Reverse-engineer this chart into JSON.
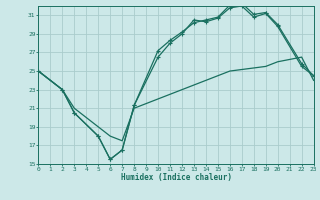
{
  "xlabel": "Humidex (Indice chaleur)",
  "bg_color": "#cce8e8",
  "grid_color": "#aacccc",
  "line_color": "#1a7060",
  "xlim": [
    0,
    23
  ],
  "ylim": [
    15,
    32
  ],
  "yticks": [
    15,
    17,
    19,
    21,
    23,
    25,
    27,
    29,
    31
  ],
  "xticks": [
    0,
    1,
    2,
    3,
    4,
    5,
    6,
    7,
    8,
    9,
    10,
    11,
    12,
    13,
    14,
    15,
    16,
    17,
    18,
    19,
    20,
    21,
    22,
    23
  ],
  "line1_x": [
    0,
    2,
    3,
    5,
    6,
    7,
    8,
    10,
    13,
    16,
    19,
    20,
    22,
    23
  ],
  "line1_y": [
    25,
    23,
    21,
    19,
    18,
    17.5,
    21,
    22,
    23.5,
    25,
    25.5,
    26,
    26.5,
    24
  ],
  "line2_x": [
    0,
    2,
    3,
    5,
    6,
    7,
    8,
    10,
    11,
    12,
    13,
    14,
    15,
    16,
    17,
    18,
    19,
    20,
    22,
    23
  ],
  "line2_y": [
    25,
    23,
    20.5,
    18,
    15.5,
    16.5,
    21.3,
    27.2,
    28.3,
    29.2,
    30.2,
    30.5,
    30.8,
    32.1,
    32.3,
    31.1,
    31.3,
    30.0,
    25.8,
    24.5
  ],
  "line3_x": [
    0,
    2,
    3,
    5,
    6,
    7,
    8,
    10,
    11,
    12,
    13,
    14,
    15,
    16,
    17,
    18,
    19,
    20,
    22,
    23
  ],
  "line3_y": [
    25,
    23,
    20.5,
    18,
    15.5,
    16.5,
    21.3,
    26.5,
    28.0,
    29.0,
    30.5,
    30.3,
    30.7,
    31.8,
    32.0,
    30.8,
    31.2,
    29.8,
    25.5,
    24.5
  ]
}
